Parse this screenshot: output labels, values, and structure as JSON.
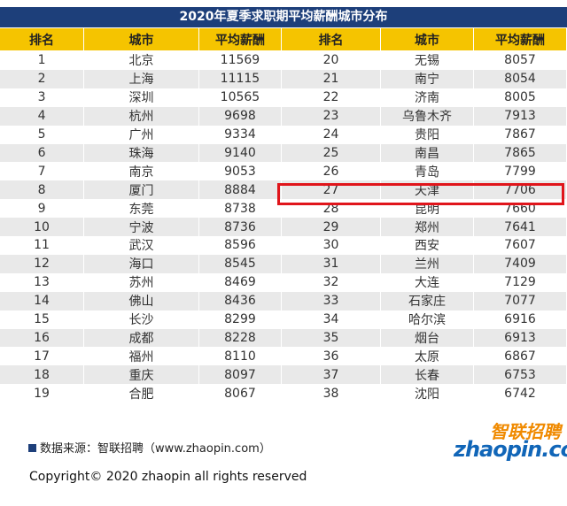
{
  "table": {
    "title": "2020年夏季求职期平均薪酬城市分布",
    "header": [
      "排名",
      "城市",
      "平均薪酬",
      "排名",
      "城市",
      "平均薪酬"
    ],
    "rows": [
      [
        1,
        "北京",
        11569,
        20,
        "无锡",
        8057
      ],
      [
        2,
        "上海",
        11115,
        21,
        "南宁",
        8054
      ],
      [
        3,
        "深圳",
        10565,
        22,
        "济南",
        8005
      ],
      [
        4,
        "杭州",
        9698,
        23,
        "乌鲁木齐",
        7913
      ],
      [
        5,
        "广州",
        9334,
        24,
        "贵阳",
        7867
      ],
      [
        6,
        "珠海",
        9140,
        25,
        "南昌",
        7865
      ],
      [
        7,
        "南京",
        9053,
        26,
        "青岛",
        7799
      ],
      [
        8,
        "厦门",
        8884,
        27,
        "天津",
        7706
      ],
      [
        9,
        "东莞",
        8738,
        28,
        "昆明",
        7660
      ],
      [
        10,
        "宁波",
        8736,
        29,
        "郑州",
        7641
      ],
      [
        11,
        "武汉",
        8596,
        30,
        "西安",
        7607
      ],
      [
        12,
        "海口",
        8545,
        31,
        "兰州",
        7409
      ],
      [
        13,
        "苏州",
        8469,
        32,
        "大连",
        7129
      ],
      [
        14,
        "佛山",
        8436,
        33,
        "石家庄",
        7077
      ],
      [
        15,
        "长沙",
        8299,
        34,
        "哈尔滨",
        6916
      ],
      [
        16,
        "成都",
        8228,
        35,
        "烟台",
        6913
      ],
      [
        17,
        "福州",
        8110,
        36,
        "太原",
        6867
      ],
      [
        18,
        "重庆",
        8097,
        37,
        "长春",
        6753
      ],
      [
        19,
        "合肥",
        8067,
        38,
        "沈阳",
        6742
      ]
    ]
  },
  "footer": {
    "source": "数据来源：智联招聘（www.zhaopin.com）",
    "logo_cn": "智联招聘",
    "logo_en": "zhaopin.com",
    "copyright": "Copyright© 2020 zhaopin all rights reserved"
  }
}
